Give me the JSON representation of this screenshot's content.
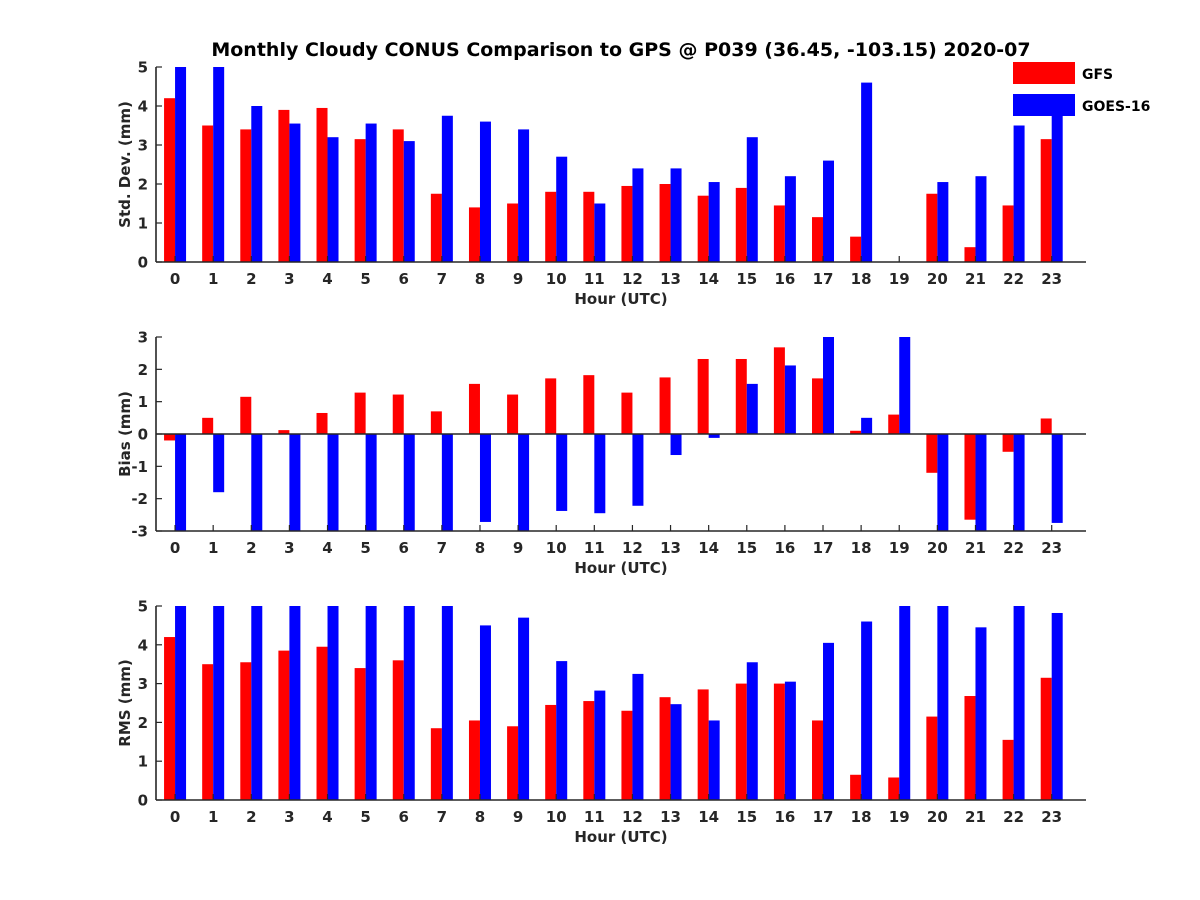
{
  "title": "Monthly Cloudy CONUS Comparison to GPS @ P039 (36.45, -103.15) 2020-07",
  "legend": [
    {
      "name": "GFS",
      "color": "#ff0000"
    },
    {
      "name": "GOES-16",
      "color": "#0000ff"
    }
  ],
  "chart_data": [
    {
      "type": "bar",
      "ylabel": "Std. Dev. (mm)",
      "xlabel": "Hour (UTC)",
      "ylim": [
        0,
        5
      ],
      "yticks": [
        "0",
        "1",
        "2",
        "3",
        "4",
        "5"
      ],
      "categories": [
        "0",
        "1",
        "2",
        "3",
        "4",
        "5",
        "6",
        "7",
        "8",
        "9",
        "10",
        "11",
        "12",
        "13",
        "14",
        "15",
        "16",
        "17",
        "18",
        "19",
        "20",
        "21",
        "22",
        "23"
      ],
      "series": [
        {
          "name": "GFS",
          "values": [
            4.2,
            3.5,
            3.4,
            3.9,
            3.95,
            3.15,
            3.4,
            1.75,
            1.4,
            1.5,
            1.8,
            1.8,
            1.95,
            2.0,
            1.7,
            1.9,
            1.45,
            1.15,
            0.65,
            0,
            1.75,
            0.38,
            1.45,
            3.15
          ]
        },
        {
          "name": "GOES-16",
          "values": [
            5,
            5,
            4.0,
            3.55,
            3.2,
            3.55,
            3.1,
            3.75,
            3.6,
            3.4,
            2.7,
            1.5,
            2.4,
            2.4,
            2.05,
            3.2,
            2.2,
            2.6,
            4.6,
            0,
            2.05,
            2.2,
            3.5,
            3.9
          ]
        }
      ]
    },
    {
      "type": "bar",
      "ylabel": "Bias (mm)",
      "xlabel": "Hour (UTC)",
      "ylim": [
        -3,
        3
      ],
      "yticks": [
        "-3",
        "-2",
        "-1",
        "0",
        "1",
        "2",
        "3"
      ],
      "categories": [
        "0",
        "1",
        "2",
        "3",
        "4",
        "5",
        "6",
        "7",
        "8",
        "9",
        "10",
        "11",
        "12",
        "13",
        "14",
        "15",
        "16",
        "17",
        "18",
        "19",
        "20",
        "21",
        "22",
        "23"
      ],
      "series": [
        {
          "name": "GFS",
          "values": [
            -0.2,
            0.5,
            1.15,
            0.12,
            0.65,
            1.28,
            1.22,
            0.7,
            1.55,
            1.22,
            1.72,
            1.82,
            1.28,
            1.75,
            2.32,
            2.32,
            2.68,
            1.72,
            0.1,
            0.6,
            -1.2,
            -2.65,
            -0.55,
            0.48
          ]
        },
        {
          "name": "GOES-16",
          "values": [
            -3,
            -1.8,
            -3,
            -3,
            -3,
            -3,
            -3,
            -3,
            -2.72,
            -3,
            -2.38,
            -2.45,
            -2.22,
            -0.65,
            -0.12,
            1.55,
            2.12,
            3,
            0.5,
            3,
            -3,
            -3,
            -3,
            -2.75
          ]
        }
      ]
    },
    {
      "type": "bar",
      "ylabel": "RMS (mm)",
      "xlabel": "Hour (UTC)",
      "ylim": [
        0,
        5
      ],
      "yticks": [
        "0",
        "1",
        "2",
        "3",
        "4",
        "5"
      ],
      "categories": [
        "0",
        "1",
        "2",
        "3",
        "4",
        "5",
        "6",
        "7",
        "8",
        "9",
        "10",
        "11",
        "12",
        "13",
        "14",
        "15",
        "16",
        "17",
        "18",
        "19",
        "20",
        "21",
        "22",
        "23"
      ],
      "series": [
        {
          "name": "GFS",
          "values": [
            4.2,
            3.5,
            3.55,
            3.85,
            3.95,
            3.4,
            3.6,
            1.85,
            2.05,
            1.9,
            2.45,
            2.55,
            2.3,
            2.65,
            2.85,
            3.0,
            3.0,
            2.05,
            0.65,
            0.58,
            2.15,
            2.68,
            1.55,
            3.15
          ]
        },
        {
          "name": "GOES-16",
          "values": [
            5,
            5,
            5,
            5,
            5,
            5,
            5,
            5,
            4.5,
            4.7,
            3.58,
            2.82,
            3.25,
            2.47,
            2.05,
            3.55,
            3.05,
            4.05,
            4.6,
            5,
            5,
            4.45,
            5,
            4.82
          ]
        }
      ]
    }
  ]
}
